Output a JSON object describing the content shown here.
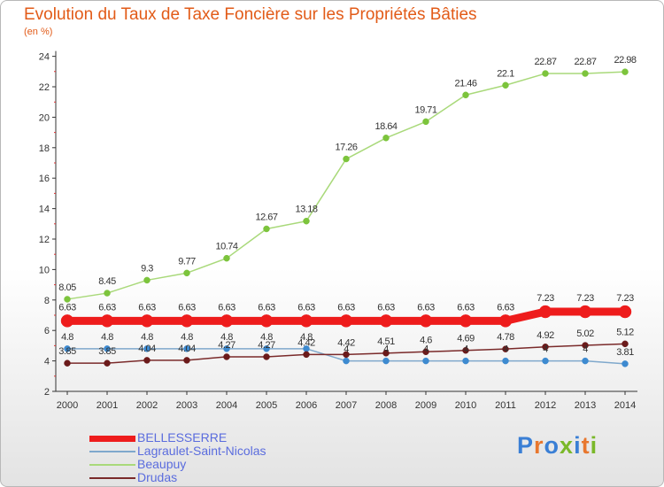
{
  "header": {
    "title": "Evolution du Taux de Taxe Foncière sur les Propriétés Bâties",
    "subtitle": "(en %)"
  },
  "logo": {
    "text": "Proxiti",
    "colors": [
      "#3a7fd5",
      "#e8772e",
      "#3a7fd5",
      "#7ab829",
      "#3a7fd5",
      "#e8772e",
      "#7ab829"
    ]
  },
  "chart_data": {
    "type": "line",
    "x": [
      "2000",
      "2001",
      "2002",
      "2003",
      "2004",
      "2005",
      "2006",
      "2007",
      "2008",
      "2009",
      "2010",
      "2011",
      "2012",
      "2013",
      "2014"
    ],
    "ylim": [
      2,
      24
    ],
    "yticks": [
      2,
      4,
      6,
      8,
      10,
      12,
      14,
      16,
      18,
      20,
      22,
      24
    ],
    "grid": false,
    "legend_position": "bottom-left",
    "series": [
      {
        "name": "BELLESSERRE",
        "color": "#ee1c1c",
        "marker": "#ee1c1c",
        "width": 9,
        "radius": 7,
        "values": [
          6.63,
          6.63,
          6.63,
          6.63,
          6.63,
          6.63,
          6.63,
          6.63,
          6.63,
          6.63,
          6.63,
          6.63,
          7.23,
          7.23,
          7.23
        ],
        "labels": [
          "6.63",
          "6.63",
          "6.63",
          "6.63",
          "6.63",
          "6.63",
          "6.63",
          "6.63",
          "6.63",
          "6.63",
          "6.63",
          "6.63",
          "7.23",
          "7.23",
          "7.23"
        ],
        "label_side": "above"
      },
      {
        "name": "Lagraulet-Saint-Nicolas",
        "color": "#7fa8cc",
        "marker": "#3d8ad0",
        "width": 1.5,
        "radius": 3.5,
        "values": [
          4.8,
          4.8,
          4.8,
          4.8,
          4.8,
          4.8,
          4.8,
          4,
          4,
          4,
          4,
          4,
          4,
          4,
          3.81
        ],
        "labels": [
          "4.8",
          "4.8",
          "4.8",
          "4.8",
          "4.8",
          "4.8",
          "4.8",
          "4",
          "4",
          "4",
          "4",
          "4",
          "4",
          "4",
          "3.81"
        ],
        "label_side": "above"
      },
      {
        "name": "Beaupuy",
        "color": "#a9d97a",
        "marker": "#7cc43c",
        "width": 1.5,
        "radius": 3.5,
        "values": [
          8.05,
          8.45,
          9.3,
          9.77,
          10.74,
          12.67,
          13.18,
          17.26,
          18.64,
          19.71,
          21.46,
          22.1,
          22.87,
          22.87,
          22.98
        ],
        "labels": [
          "8.05",
          "8.45",
          "9.3",
          "9.77",
          "10.74",
          "12.67",
          "13.18",
          "17.26",
          "18.64",
          "19.71",
          "21.46",
          "22.1",
          "22.87",
          "22.87",
          "22.98"
        ],
        "label_side": "above"
      },
      {
        "name": "Drudas",
        "color": "#7a2a2a",
        "marker": "#6b1a1a",
        "width": 1.5,
        "radius": 3.5,
        "values": [
          3.85,
          3.85,
          4.04,
          4.04,
          4.27,
          4.27,
          4.42,
          4.42,
          4.51,
          4.6,
          4.69,
          4.78,
          4.92,
          5.02,
          5.12
        ],
        "labels": [
          "3.85",
          "3.85",
          "4.04",
          "4.04",
          "4.27",
          "4.27",
          "4.42",
          "4.42",
          "4.51",
          "4.6",
          "4.69",
          "4.78",
          "4.92",
          "5.02",
          "5.12"
        ],
        "label_side": "above"
      }
    ]
  }
}
